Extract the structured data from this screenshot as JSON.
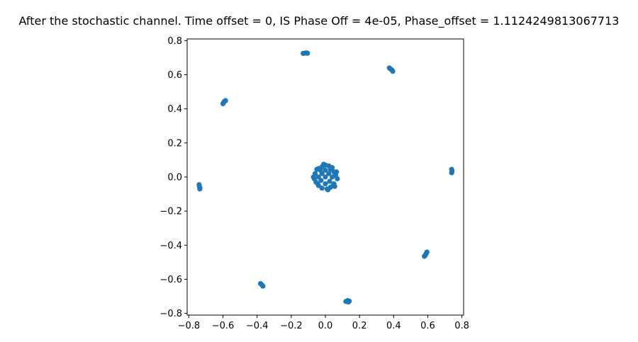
{
  "chart_data": {
    "type": "scatter",
    "title": "After the stochastic channel. Time offset = 0, IS Phase Off = 4e-05, Phase_offset = 1.1124249813067713",
    "xlabel": "",
    "ylabel": "",
    "xlim": [
      -0.81,
      0.81
    ],
    "ylim": [
      -0.81,
      0.81
    ],
    "xticks": [
      -0.8,
      -0.6,
      -0.4,
      -0.2,
      0.0,
      0.2,
      0.4,
      0.6,
      0.8
    ],
    "yticks": [
      -0.8,
      -0.6,
      -0.4,
      -0.2,
      0.0,
      0.2,
      0.4,
      0.6,
      0.8
    ],
    "xtick_labels": [
      "−0.8",
      "−0.6",
      "−0.4",
      "−0.2",
      "0.0",
      "0.2",
      "0.4",
      "0.6",
      "0.8"
    ],
    "ytick_labels": [
      "−0.8",
      "−0.6",
      "−0.4",
      "−0.2",
      "0.0",
      "0.2",
      "0.4",
      "0.6",
      "0.8"
    ],
    "grid": false,
    "legend": "none",
    "color": "#1f77b4",
    "series": [
      {
        "values": [
          [
            -0.13,
            0.725
          ],
          [
            -0.12,
            0.727
          ],
          [
            -0.11,
            0.728
          ],
          [
            -0.105,
            0.726
          ],
          [
            0.375,
            0.64
          ],
          [
            0.38,
            0.635
          ],
          [
            0.39,
            0.628
          ],
          [
            0.395,
            0.62
          ],
          [
            -0.6,
            0.43
          ],
          [
            -0.595,
            0.44
          ],
          [
            -0.59,
            0.445
          ],
          [
            -0.585,
            0.448
          ],
          [
            0.74,
            0.045
          ],
          [
            0.742,
            0.035
          ],
          [
            0.74,
            0.025
          ],
          [
            -0.74,
            -0.045
          ],
          [
            -0.738,
            -0.055
          ],
          [
            -0.735,
            -0.065
          ],
          [
            -0.736,
            -0.07
          ],
          [
            0.58,
            -0.465
          ],
          [
            0.585,
            -0.46
          ],
          [
            0.59,
            -0.45
          ],
          [
            0.595,
            -0.44
          ],
          [
            -0.38,
            -0.625
          ],
          [
            -0.372,
            -0.633
          ],
          [
            -0.366,
            -0.64
          ],
          [
            0.12,
            -0.73
          ],
          [
            0.13,
            -0.725
          ],
          [
            0.14,
            -0.728
          ],
          [
            0.135,
            -0.733
          ],
          [
            0.0,
            0.07
          ],
          [
            0.02,
            0.065
          ],
          [
            0.04,
            0.055
          ],
          [
            -0.02,
            0.06
          ],
          [
            -0.04,
            0.05
          ],
          [
            0.05,
            0.03
          ],
          [
            0.06,
            0.01
          ],
          [
            0.07,
            -0.01
          ],
          [
            -0.06,
            0.02
          ],
          [
            -0.065,
            -0.01
          ],
          [
            0.05,
            -0.04
          ],
          [
            0.03,
            -0.06
          ],
          [
            0.01,
            -0.07
          ],
          [
            -0.02,
            -0.065
          ],
          [
            -0.04,
            -0.05
          ],
          [
            -0.055,
            -0.03
          ],
          [
            0.0,
            0.0
          ],
          [
            0.02,
            0.02
          ],
          [
            -0.02,
            0.02
          ],
          [
            0.025,
            -0.025
          ],
          [
            -0.025,
            -0.02
          ],
          [
            0.04,
            0.0
          ],
          [
            -0.04,
            0.0
          ],
          [
            0.0,
            0.04
          ],
          [
            0.0,
            -0.04
          ],
          [
            0.03,
            0.045
          ],
          [
            -0.03,
            0.04
          ],
          [
            0.045,
            -0.05
          ],
          [
            -0.045,
            -0.04
          ],
          [
            0.065,
            0.03
          ],
          [
            -0.07,
            0.0
          ],
          [
            0.015,
            -0.075
          ],
          [
            -0.01,
            0.075
          ],
          [
            0.055,
            -0.055
          ],
          [
            -0.05,
            0.045
          ]
        ]
      }
    ]
  }
}
